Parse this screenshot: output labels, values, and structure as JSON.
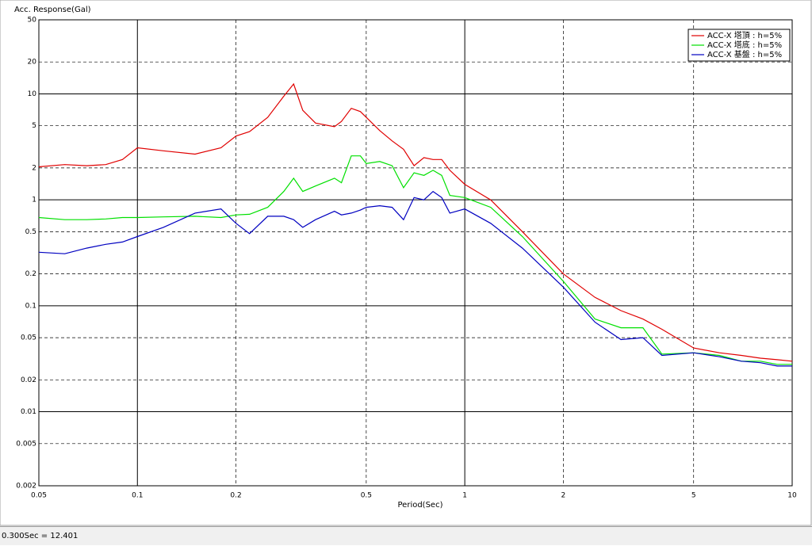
{
  "chart_data": {
    "type": "line",
    "title": "Acc. Response(Gal)",
    "x_label": "Period(Sec)",
    "log_x": true,
    "log_y": true,
    "grid": true,
    "legend": "upper right",
    "xlim": [
      0.05,
      10
    ],
    "ylim": [
      0.002,
      50
    ],
    "xticks": [
      0.05,
      0.1,
      0.2,
      0.5,
      1,
      2,
      5,
      10
    ],
    "yticks": [
      0.002,
      0.005,
      0.01,
      0.02,
      0.05,
      0.1,
      0.2,
      0.5,
      1,
      2,
      5,
      10,
      20,
      50
    ],
    "x": [
      0.05,
      0.06,
      0.07,
      0.08,
      0.09,
      0.1,
      0.12,
      0.15,
      0.18,
      0.2,
      0.22,
      0.25,
      0.28,
      0.3,
      0.32,
      0.35,
      0.4,
      0.42,
      0.45,
      0.48,
      0.5,
      0.55,
      0.6,
      0.65,
      0.7,
      0.75,
      0.8,
      0.85,
      0.9,
      1,
      1.2,
      1.5,
      2,
      2.5,
      3,
      3.5,
      4,
      5,
      6,
      7,
      8,
      9,
      10
    ],
    "series": [
      {
        "name": "ACC-X 塔頂 : h=5%",
        "color": "#e00000",
        "values": [
          2.05,
          2.15,
          2.1,
          2.15,
          2.4,
          3.1,
          2.9,
          2.7,
          3.1,
          4.0,
          4.4,
          6.0,
          9.5,
          12.4,
          7,
          5.3,
          4.9,
          5.5,
          7.3,
          6.8,
          6,
          4.5,
          3.6,
          3.0,
          2.1,
          2.5,
          2.4,
          2.4,
          1.9,
          1.4,
          1.0,
          0.5,
          0.2,
          0.12,
          0.09,
          0.075,
          0.06,
          0.04,
          0.036,
          0.034,
          0.032,
          0.031,
          0.03
        ]
      },
      {
        "name": "ACC-X 塔底 : h=5%",
        "color": "#00e000",
        "values": [
          0.68,
          0.65,
          0.65,
          0.66,
          0.68,
          0.68,
          0.69,
          0.7,
          0.68,
          0.72,
          0.73,
          0.85,
          1.2,
          1.6,
          1.2,
          1.35,
          1.6,
          1.45,
          2.6,
          2.6,
          2.2,
          2.3,
          2.1,
          1.3,
          1.8,
          1.7,
          1.9,
          1.7,
          1.1,
          1.05,
          0.85,
          0.45,
          0.17,
          0.075,
          0.062,
          0.062,
          0.035,
          0.036,
          0.034,
          0.03,
          0.03,
          0.028,
          0.028
        ]
      },
      {
        "name": "ACC-X 基盤 : h=5%",
        "color": "#0000c0",
        "values": [
          0.32,
          0.31,
          0.35,
          0.38,
          0.4,
          0.45,
          0.55,
          0.75,
          0.82,
          0.6,
          0.48,
          0.7,
          0.7,
          0.65,
          0.55,
          0.65,
          0.78,
          0.72,
          0.75,
          0.8,
          0.85,
          0.88,
          0.85,
          0.65,
          1.05,
          1.0,
          1.2,
          1.05,
          0.75,
          0.82,
          0.6,
          0.35,
          0.15,
          0.07,
          0.048,
          0.05,
          0.034,
          0.036,
          0.033,
          0.03,
          0.029,
          0.027,
          0.027
        ]
      }
    ]
  },
  "status_bar": {
    "text": "0.300Sec = 12.401"
  }
}
